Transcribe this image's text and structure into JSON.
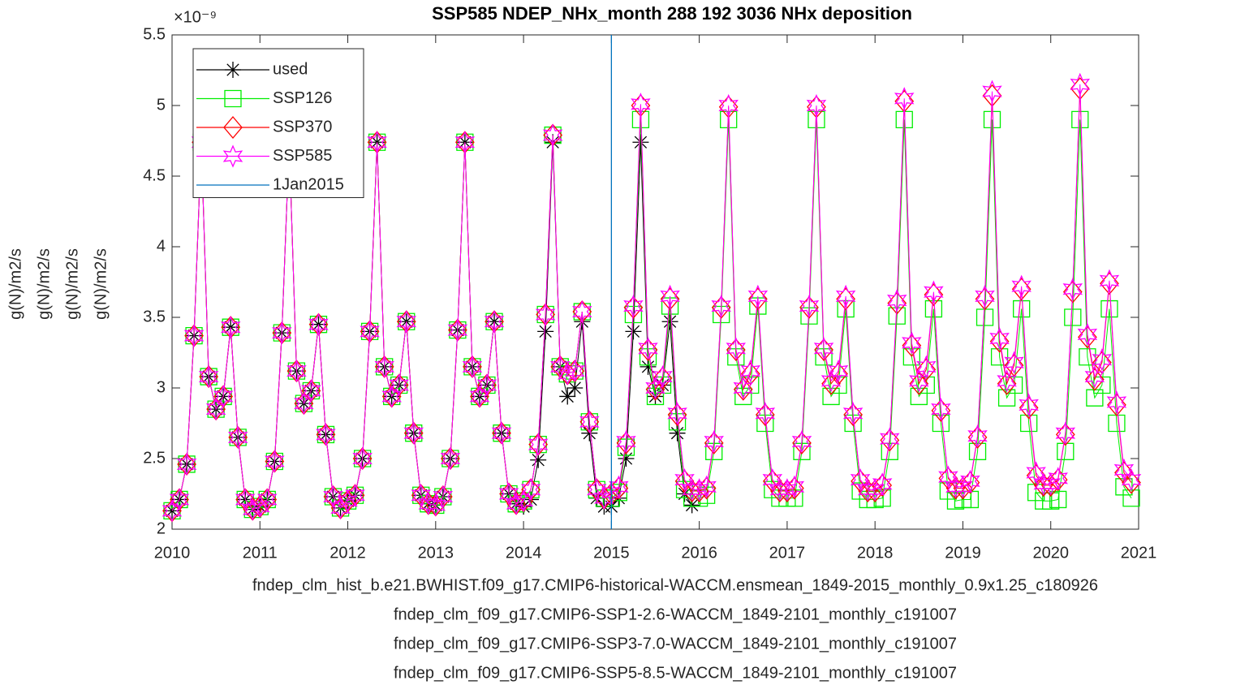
{
  "chart_data": {
    "type": "line",
    "title": "SSP585 NDEP_NHx_month  288 192 3036   NHx deposition",
    "y_multiplier": "×10⁻⁹",
    "ylabels": [
      "g(N)/m2/s",
      "g(N)/m2/s",
      "g(N)/m2/s",
      "g(N)/m2/s"
    ],
    "xlabels": [
      "fndep_clm_hist_b.e21.BWHIST.f09_g17.CMIP6-historical-WACCM.ensmean_1849-2015_monthly_0.9x1.25_c180926",
      "fndep_clm_f09_g17.CMIP6-SSP1-2.6-WACCM_1849-2101_monthly_c191007",
      "fndep_clm_f09_g17.CMIP6-SSP3-7.0-WACCM_1849-2101_monthly_c191007",
      "fndep_clm_f09_g17.CMIP6-SSP5-8.5-WACCM_1849-2101_monthly_c191007"
    ],
    "xlim": [
      2010,
      2021
    ],
    "xticks": [
      2010,
      2011,
      2012,
      2013,
      2014,
      2015,
      2016,
      2017,
      2018,
      2019,
      2020,
      2021
    ],
    "ylim": [
      2,
      5.5
    ],
    "yticks": [
      2,
      2.5,
      3,
      3.5,
      4,
      4.5,
      5,
      5.5
    ],
    "grid": false,
    "legend": "upper left",
    "x": [
      2010,
      2010.083,
      2010.167,
      2010.25,
      2010.333,
      2010.417,
      2010.5,
      2010.583,
      2010.667,
      2010.75,
      2010.833,
      2010.917,
      2011,
      2011.083,
      2011.167,
      2011.25,
      2011.333,
      2011.417,
      2011.5,
      2011.583,
      2011.667,
      2011.75,
      2011.833,
      2011.917,
      2012,
      2012.083,
      2012.167,
      2012.25,
      2012.333,
      2012.417,
      2012.5,
      2012.583,
      2012.667,
      2012.75,
      2012.833,
      2012.917,
      2013,
      2013.083,
      2013.167,
      2013.25,
      2013.333,
      2013.417,
      2013.5,
      2013.583,
      2013.667,
      2013.75,
      2013.833,
      2013.917,
      2014,
      2014.083,
      2014.167,
      2014.25,
      2014.333,
      2014.417,
      2014.5,
      2014.583,
      2014.667,
      2014.75,
      2014.833,
      2014.917,
      2015,
      2015.083,
      2015.167,
      2015.25,
      2015.333,
      2015.417,
      2015.5,
      2015.583,
      2015.667,
      2015.75,
      2015.833,
      2015.917,
      2016,
      2016.083,
      2016.167,
      2016.25,
      2016.333,
      2016.417,
      2016.5,
      2016.583,
      2016.667,
      2016.75,
      2016.833,
      2016.917,
      2017,
      2017.083,
      2017.167,
      2017.25,
      2017.333,
      2017.417,
      2017.5,
      2017.583,
      2017.667,
      2017.75,
      2017.833,
      2017.917,
      2018,
      2018.083,
      2018.167,
      2018.25,
      2018.333,
      2018.417,
      2018.5,
      2018.583,
      2018.667,
      2018.75,
      2018.833,
      2018.917,
      2019,
      2019.083,
      2019.167,
      2019.25,
      2019.333,
      2019.417,
      2019.5,
      2019.583,
      2019.667,
      2019.75,
      2019.833,
      2019.917,
      2020,
      2020.083,
      2020.167,
      2020.25,
      2020.333,
      2020.417,
      2020.5,
      2020.583,
      2020.667,
      2020.75,
      2020.833,
      2020.917
    ],
    "series": [
      {
        "name": "used",
        "color": "#000000",
        "marker": "asterisk",
        "values": [
          2.13,
          2.21,
          2.46,
          3.37,
          4.74,
          3.08,
          2.85,
          2.94,
          3.43,
          2.65,
          2.21,
          2.14,
          2.16,
          2.21,
          2.48,
          3.39,
          4.74,
          3.12,
          2.89,
          2.98,
          3.45,
          2.67,
          2.23,
          2.15,
          2.2,
          2.24,
          2.5,
          3.4,
          4.74,
          3.15,
          2.94,
          3.02,
          3.47,
          2.68,
          2.24,
          2.18,
          2.17,
          2.23,
          2.5,
          3.41,
          4.74,
          3.15,
          2.94,
          3.02,
          3.47,
          2.68,
          2.25,
          2.18,
          2.16,
          2.21,
          2.49,
          3.4,
          4.74,
          3.15,
          2.94,
          3.0,
          3.47,
          2.68,
          2.22,
          2.16,
          2.16,
          2.22,
          2.5,
          3.4,
          4.74,
          3.15,
          2.94,
          3.02,
          3.47,
          2.68,
          2.25,
          2.17,
          null,
          null,
          null,
          null,
          null,
          null,
          null,
          null,
          null,
          null,
          null,
          null,
          null,
          null,
          null,
          null,
          null,
          null,
          null,
          null,
          null,
          null,
          null,
          null,
          null,
          null,
          null,
          null,
          null,
          null,
          null,
          null,
          null,
          null,
          null,
          null,
          null,
          null,
          null,
          null,
          null,
          null,
          null,
          null,
          null,
          null,
          null,
          null,
          null,
          null,
          null,
          null,
          null,
          null,
          null,
          null,
          null,
          null,
          null,
          null
        ]
      },
      {
        "name": "SSP126",
        "color": "#00ee00",
        "marker": "square",
        "values": [
          2.13,
          2.21,
          2.46,
          3.37,
          4.74,
          3.08,
          2.85,
          2.94,
          3.43,
          2.65,
          2.21,
          2.14,
          2.16,
          2.21,
          2.48,
          3.39,
          4.74,
          3.12,
          2.89,
          2.98,
          3.45,
          2.67,
          2.23,
          2.15,
          2.2,
          2.24,
          2.5,
          3.4,
          4.74,
          3.15,
          2.94,
          3.02,
          3.47,
          2.68,
          2.24,
          2.18,
          2.17,
          2.23,
          2.5,
          3.41,
          4.74,
          3.15,
          2.94,
          3.02,
          3.47,
          2.68,
          2.25,
          2.18,
          2.2,
          2.28,
          2.6,
          3.52,
          4.79,
          3.15,
          3.1,
          3.12,
          3.54,
          2.76,
          2.28,
          2.22,
          2.22,
          2.26,
          2.58,
          3.52,
          4.9,
          3.22,
          2.94,
          3.02,
          3.58,
          2.76,
          2.28,
          2.22,
          2.22,
          2.24,
          2.55,
          3.52,
          4.9,
          3.22,
          2.94,
          3.02,
          3.58,
          2.75,
          2.28,
          2.22,
          2.22,
          2.22,
          2.55,
          3.51,
          4.9,
          3.22,
          2.94,
          3.02,
          3.56,
          2.75,
          2.27,
          2.21,
          2.21,
          2.22,
          2.55,
          3.51,
          4.9,
          3.22,
          2.94,
          3.02,
          3.56,
          2.75,
          2.27,
          2.2,
          2.21,
          2.21,
          2.55,
          3.5,
          4.9,
          3.22,
          2.93,
          3.02,
          3.56,
          2.75,
          2.26,
          2.2,
          2.2,
          2.21,
          2.55,
          3.5,
          4.9,
          3.22,
          2.93,
          3.02,
          3.56,
          2.75,
          2.3,
          2.22
        ]
      },
      {
        "name": "SSP370",
        "color": "#ff0000",
        "marker": "diamond",
        "values": [
          2.13,
          2.21,
          2.46,
          3.37,
          4.74,
          3.08,
          2.85,
          2.94,
          3.43,
          2.65,
          2.21,
          2.14,
          2.16,
          2.21,
          2.48,
          3.39,
          4.74,
          3.12,
          2.89,
          2.98,
          3.45,
          2.67,
          2.23,
          2.15,
          2.2,
          2.24,
          2.5,
          3.4,
          4.74,
          3.15,
          2.94,
          3.02,
          3.47,
          2.68,
          2.24,
          2.18,
          2.17,
          2.23,
          2.5,
          3.41,
          4.74,
          3.15,
          2.94,
          3.02,
          3.47,
          2.68,
          2.25,
          2.18,
          2.2,
          2.28,
          2.6,
          3.52,
          4.79,
          3.15,
          3.1,
          3.12,
          3.54,
          2.76,
          2.28,
          2.22,
          2.25,
          2.29,
          2.61,
          3.57,
          5.0,
          3.27,
          2.99,
          3.07,
          3.63,
          2.81,
          2.34,
          2.27,
          2.27,
          2.29,
          2.61,
          3.57,
          4.99,
          3.27,
          2.99,
          3.1,
          3.63,
          2.81,
          2.34,
          2.27,
          2.27,
          2.29,
          2.61,
          3.57,
          4.99,
          3.27,
          3.03,
          3.1,
          3.63,
          2.81,
          2.34,
          2.27,
          2.27,
          2.31,
          2.63,
          3.6,
          5.03,
          3.3,
          3.03,
          3.13,
          3.66,
          2.84,
          2.36,
          2.29,
          2.29,
          2.33,
          2.65,
          3.63,
          5.07,
          3.33,
          3.03,
          3.16,
          3.7,
          2.86,
          2.38,
          2.31,
          2.31,
          2.35,
          2.67,
          3.68,
          5.12,
          3.36,
          3.06,
          3.18,
          3.74,
          2.88,
          2.4,
          2.33
        ]
      },
      {
        "name": "SSP585",
        "color": "#ff00ff",
        "marker": "hexagram",
        "values": [
          2.13,
          2.21,
          2.46,
          3.37,
          4.74,
          3.08,
          2.85,
          2.94,
          3.43,
          2.65,
          2.21,
          2.14,
          2.16,
          2.21,
          2.48,
          3.39,
          4.74,
          3.12,
          2.89,
          2.98,
          3.45,
          2.67,
          2.23,
          2.15,
          2.2,
          2.24,
          2.5,
          3.4,
          4.74,
          3.15,
          2.94,
          3.02,
          3.47,
          2.68,
          2.24,
          2.18,
          2.17,
          2.23,
          2.5,
          3.41,
          4.74,
          3.15,
          2.94,
          3.02,
          3.47,
          2.68,
          2.25,
          2.18,
          2.2,
          2.28,
          2.6,
          3.52,
          4.79,
          3.15,
          3.1,
          3.12,
          3.54,
          2.76,
          2.28,
          2.22,
          2.26,
          2.3,
          2.62,
          3.58,
          5.01,
          3.28,
          3.0,
          3.08,
          3.65,
          2.82,
          2.35,
          2.28,
          2.28,
          2.3,
          2.62,
          3.58,
          5.0,
          3.28,
          3.0,
          3.12,
          3.65,
          2.82,
          2.35,
          2.28,
          2.28,
          2.3,
          2.62,
          3.58,
          5.0,
          3.28,
          3.05,
          3.12,
          3.65,
          2.82,
          2.35,
          2.28,
          2.28,
          2.32,
          2.64,
          3.62,
          5.05,
          3.32,
          3.05,
          3.15,
          3.68,
          2.85,
          2.37,
          2.3,
          2.3,
          2.34,
          2.66,
          3.65,
          5.1,
          3.35,
          3.05,
          3.18,
          3.72,
          2.88,
          2.4,
          2.32,
          2.32,
          2.36,
          2.68,
          3.7,
          5.15,
          3.38,
          3.08,
          3.2,
          3.76,
          2.9,
          2.42,
          2.35
        ]
      }
    ],
    "vline": {
      "name": "1Jan2015",
      "x": 2015,
      "color": "#0072bd"
    }
  }
}
